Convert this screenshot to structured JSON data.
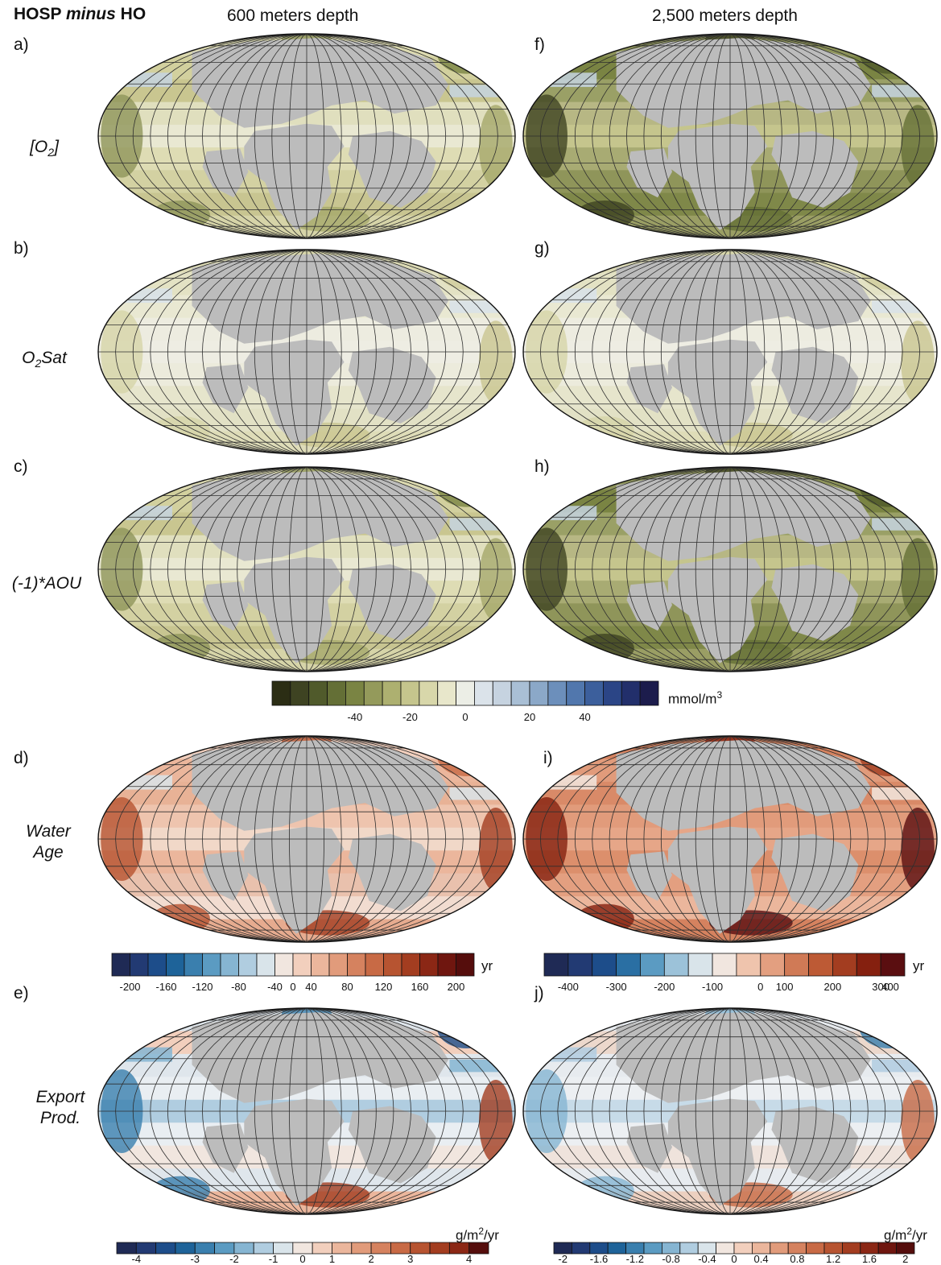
{
  "header": {
    "comparison_parts": [
      "HOSP ",
      "minus",
      " HO"
    ],
    "col_left": "600 meters depth",
    "col_right": "2,500 meters depth"
  },
  "panels": [
    {
      "id": "a",
      "label": "a)",
      "depth": "600",
      "field": "O2",
      "palette": "oxy"
    },
    {
      "id": "b",
      "label": "b)",
      "depth": "600",
      "field": "O2Sat",
      "palette": "oxy"
    },
    {
      "id": "c",
      "label": "c)",
      "depth": "600",
      "field": "AOU",
      "palette": "oxy"
    },
    {
      "id": "d",
      "label": "d)",
      "depth": "600",
      "field": "Water Age",
      "palette": "age"
    },
    {
      "id": "e",
      "label": "e)",
      "depth": "600",
      "field": "Export Prod.",
      "palette": "export"
    },
    {
      "id": "f",
      "label": "f)",
      "depth": "2500",
      "field": "O2",
      "palette": "oxy"
    },
    {
      "id": "g",
      "label": "g)",
      "depth": "2500",
      "field": "O2Sat",
      "palette": "oxy"
    },
    {
      "id": "h",
      "label": "h)",
      "depth": "2500",
      "field": "AOU",
      "palette": "oxy"
    },
    {
      "id": "i",
      "label": "i)",
      "depth": "2500",
      "field": "Water Age",
      "palette": "age"
    },
    {
      "id": "j",
      "label": "j)",
      "depth": "2500",
      "field": "Export Prod.",
      "palette": "export"
    }
  ],
  "row_labels": {
    "o2": "[O2]",
    "o2_base": "[O",
    "o2_sub": "2",
    "o2_end": "]",
    "o2sat_base": "O",
    "o2sat_sub": "2",
    "o2sat_end": "Sat",
    "aou": "(-1)*AOU",
    "age_1": "Water",
    "age_2": "Age",
    "exp_1": "Export",
    "exp_2": "Prod."
  },
  "colorbars": {
    "oxygen": {
      "unit_base": "mmol/m",
      "unit_sup": "3",
      "ticks": [
        "-40",
        "-20",
        "0",
        "20",
        "40"
      ],
      "colors": [
        "#2b2d14",
        "#3e4322",
        "#505a2b",
        "#646f36",
        "#7a8443",
        "#949a5b",
        "#adb070",
        "#c5c58d",
        "#d8d7aa",
        "#e8e7cb",
        "#eceee6",
        "#dbe3ea",
        "#c6d3e0",
        "#a9bfd5",
        "#8ba8c8",
        "#6c8fbb",
        "#5177ad",
        "#3c5f9c",
        "#2b4586",
        "#222f6b",
        "#1c1c4c"
      ]
    },
    "age_600": {
      "unit": "yr",
      "ticks": [
        "-200",
        "-160",
        "-120",
        "-80",
        "-40",
        "0",
        "40",
        "80",
        "120",
        "160",
        "200"
      ],
      "colors": [
        "#1f2a55",
        "#223a73",
        "#1d4d8a",
        "#1e6399",
        "#3a7fae",
        "#5b9bc2",
        "#86b5d2",
        "#b0cde0",
        "#d9e4ea",
        "#f1e6df",
        "#f2cfbd",
        "#ebb69c",
        "#e19b7b",
        "#d5825f",
        "#c86a45",
        "#b75431",
        "#a33d20",
        "#8b2715",
        "#6f160f",
        "#550d0c"
      ]
    },
    "age_2500": {
      "unit": "yr",
      "ticks": [
        "-400",
        "-300",
        "-200",
        "-100",
        "0",
        "100",
        "200",
        "300",
        "400"
      ],
      "colors": [
        "#1f2a55",
        "#223a73",
        "#1d4d8a",
        "#2a6fa3",
        "#5b9bc2",
        "#9cc2d9",
        "#d9e4ea",
        "#f1e6df",
        "#efc4ad",
        "#e39f80",
        "#d07a56",
        "#bd5a35",
        "#a33d20",
        "#85200f",
        "#5a0e10"
      ]
    },
    "export_600": {
      "unit_base": "g/m",
      "unit_sup": "2",
      "unit_end": "/yr",
      "ticks": [
        "-4",
        "-3",
        "-2",
        "-1",
        "0",
        "1",
        "2",
        "3",
        "4"
      ],
      "colors": [
        "#1f2a55",
        "#223a73",
        "#1d4d8a",
        "#1e6399",
        "#3a7fae",
        "#5b9bc2",
        "#86b5d2",
        "#b0cde0",
        "#d9e4ea",
        "#f1e6df",
        "#f2cfbd",
        "#ebb69c",
        "#e19b7b",
        "#d5825f",
        "#c86a45",
        "#b75431",
        "#a33d20",
        "#8b2715",
        "#550d0c"
      ]
    },
    "export_2500": {
      "unit_base": "g/m",
      "unit_sup": "2",
      "unit_end": "/yr",
      "ticks": [
        "-2",
        "-1.6",
        "-1.2",
        "-0.8",
        "-0.4",
        "0",
        "0.4",
        "0.8",
        "1.2",
        "1.6",
        "2"
      ],
      "colors": [
        "#1f2a55",
        "#223a73",
        "#1d4d8a",
        "#1e6399",
        "#3a7fae",
        "#5b9bc2",
        "#86b5d2",
        "#b0cde0",
        "#d9e4ea",
        "#f1e6df",
        "#f2cfbd",
        "#ebb69c",
        "#e19b7b",
        "#d5825f",
        "#c86a45",
        "#b75431",
        "#a33d20",
        "#8b2715",
        "#6f160f",
        "#550d0c"
      ]
    }
  },
  "land_color": "#bcbcbc",
  "grid_color": "#2e2e2e"
}
